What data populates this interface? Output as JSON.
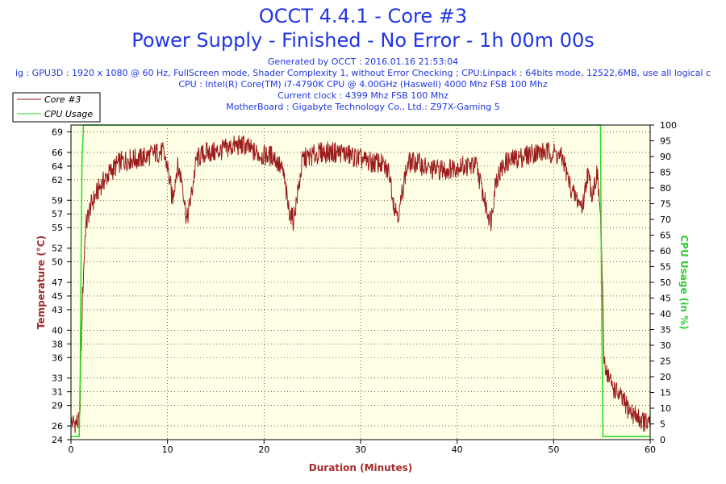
{
  "header": {
    "title": "OCCT 4.4.1 - Core #3",
    "subtitle": "Power Supply - Finished - No Error - 1h 00m 00s",
    "info": [
      "Generated by OCCT : 2016.01.16 21:53:04",
      "ig : GPU3D : 1920 x 1080 @ 60 Hz, FullScreen mode, Shader Complexity 1, without Error Checking ; CPU:Linpack : 64bits mode, 12522,6MB, use all logical c",
      "CPU : Intel(R) Core(TM) i7-4790K CPU @ 4.00GHz (Haswell) 4000 Mhz FSB 100 Mhz",
      "Current clock : 4399 Mhz FSB 100 Mhz",
      "MotherBoard : Gigabyte Technology Co., Ltd.: Z97X-Gaming 5"
    ]
  },
  "colors": {
    "text_blue": "#1f35e6",
    "temp_line": "#9b1b1b",
    "cpu_line": "#22dd22",
    "plot_bg": "#ffffe6",
    "axis_red": "#a52a2a",
    "axis_green": "#33cc33"
  },
  "chart_data": {
    "type": "line",
    "xlabel": "Duration (Minutes)",
    "ylabel_left": "Temperature (°C)",
    "ylabel_right": "CPU Usage (in %)",
    "xlim": [
      0,
      60
    ],
    "ylim_left": [
      24,
      70
    ],
    "ylim_right": [
      0,
      100
    ],
    "x_ticks": [
      "0",
      "10",
      "20",
      "30",
      "40",
      "50",
      "60"
    ],
    "y_left_ticks": [
      "24",
      "26",
      "29",
      "31",
      "33",
      "36",
      "38",
      "40",
      "43",
      "45",
      "47",
      "50",
      "52",
      "55",
      "57",
      "59",
      "62",
      "64",
      "66",
      "69"
    ],
    "y_right_ticks": [
      "0",
      "5",
      "10",
      "15",
      "20",
      "25",
      "30",
      "35",
      "40",
      "45",
      "50",
      "55",
      "60",
      "65",
      "70",
      "75",
      "80",
      "85",
      "90",
      "95",
      "100"
    ],
    "grid": true,
    "legend_position": "top-left",
    "series": [
      {
        "name": "Core #3",
        "axis": "left",
        "x": [
          0,
          0.9,
          1.0,
          1.2,
          1.5,
          2,
          3,
          4,
          5,
          6,
          7,
          8,
          9,
          9.5,
          10,
          10.5,
          11,
          11.5,
          12,
          12.5,
          13,
          14,
          15,
          16,
          17,
          18,
          19,
          20,
          21,
          22,
          22.5,
          23,
          23.5,
          24,
          25,
          26,
          27,
          28,
          29,
          30,
          31,
          32,
          33,
          33.5,
          34,
          34.5,
          35,
          36,
          37,
          38,
          39,
          40,
          42,
          43,
          43.5,
          44,
          45,
          46,
          47,
          48,
          49,
          50,
          51,
          51.5,
          52,
          53,
          53.5,
          54,
          54.5,
          54.8,
          55,
          55.2,
          55.5,
          56,
          57,
          58,
          59,
          60
        ],
        "values": [
          26.5,
          26.5,
          34,
          45,
          55,
          58,
          61,
          63,
          64.5,
          65,
          65,
          65.5,
          66,
          66,
          64,
          59,
          64,
          62,
          56,
          60,
          65,
          66,
          66,
          66.5,
          67,
          67,
          66,
          65.5,
          65.5,
          63,
          58,
          56,
          60,
          65,
          65.5,
          66,
          66,
          66,
          65.5,
          65,
          64.5,
          64.5,
          63,
          58,
          57,
          62,
          64.5,
          64.5,
          63.5,
          63.5,
          63.5,
          64,
          64,
          58,
          56,
          62,
          64.5,
          65,
          65.5,
          66,
          66,
          66,
          65,
          62,
          60,
          58,
          63,
          60,
          63,
          58,
          50,
          36,
          34,
          32,
          30,
          28,
          27,
          26
        ]
      },
      {
        "name": "CPU Usage",
        "axis": "right",
        "x": [
          0,
          0.85,
          0.95,
          1.05,
          1.15,
          1.3,
          54.85,
          54.95,
          55.1,
          60
        ],
        "values": [
          1,
          1,
          20,
          60,
          90,
          100,
          100,
          50,
          1,
          1
        ]
      }
    ]
  }
}
